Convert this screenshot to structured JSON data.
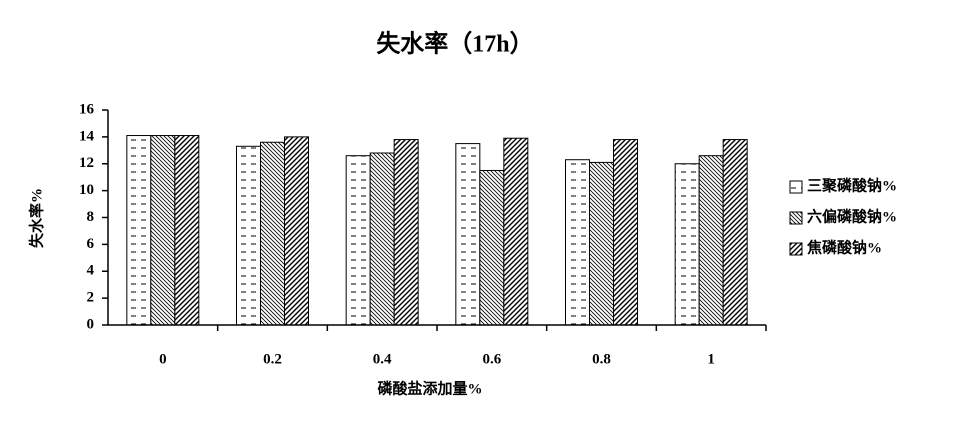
{
  "chart_data": {
    "type": "bar",
    "title": "失水率（17h）",
    "x_label": "磷酸盐添加量%",
    "y_label": "失水率%",
    "categories": [
      "0",
      "0.2",
      "0.4",
      "0.6",
      "0.8",
      "1"
    ],
    "series": [
      {
        "name": "三聚磷酸钠%",
        "color": "#000000",
        "pattern": "dash",
        "values": [
          14.1,
          13.3,
          12.6,
          13.5,
          12.3,
          12.0
        ]
      },
      {
        "name": "六偏磷酸钠%",
        "color": "#000000",
        "pattern": "backslash",
        "values": [
          14.1,
          13.6,
          12.8,
          11.5,
          12.1,
          12.6
        ]
      },
      {
        "name": "焦磷酸钠%",
        "color": "#000000",
        "pattern": "slash",
        "values": [
          14.1,
          14.0,
          13.8,
          13.9,
          13.8,
          13.8
        ]
      }
    ],
    "ylim": [
      0,
      16
    ],
    "yticks": [
      0,
      2,
      4,
      6,
      8,
      10,
      12,
      14,
      16
    ],
    "legend": "right"
  }
}
